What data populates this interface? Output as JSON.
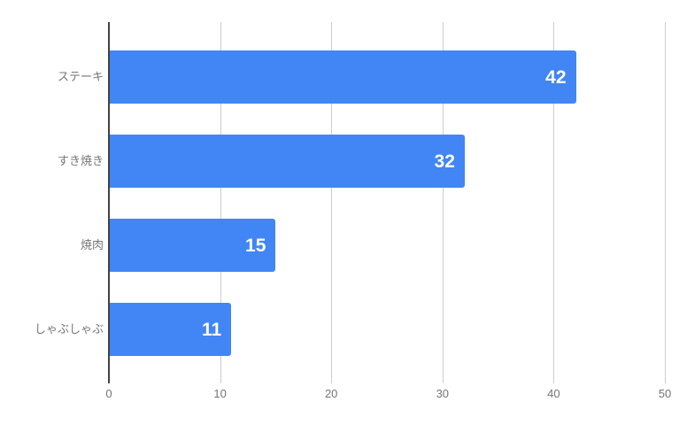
{
  "chart_data": {
    "type": "bar",
    "orientation": "horizontal",
    "title": "",
    "xlabel": "",
    "ylabel": "",
    "categories": [
      "ステーキ",
      "すき焼き",
      "焼肉",
      "しゃぶしゃぶ"
    ],
    "values": [
      42,
      32,
      15,
      11
    ],
    "value_labels": [
      "42",
      "32",
      "15",
      "11"
    ],
    "xlim": [
      0,
      50
    ],
    "x_ticks": [
      0,
      10,
      20,
      30,
      40,
      50
    ],
    "x_tick_labels": [
      "0",
      "10",
      "20",
      "30",
      "40",
      "50"
    ],
    "grid": true,
    "legend": "none",
    "colors": {
      "bar": "#4285F4",
      "value_label": "#ffffff",
      "axis_text": "#757575",
      "gridline": "#cccccc",
      "baseline": "#424242",
      "background": "#ffffff"
    }
  }
}
